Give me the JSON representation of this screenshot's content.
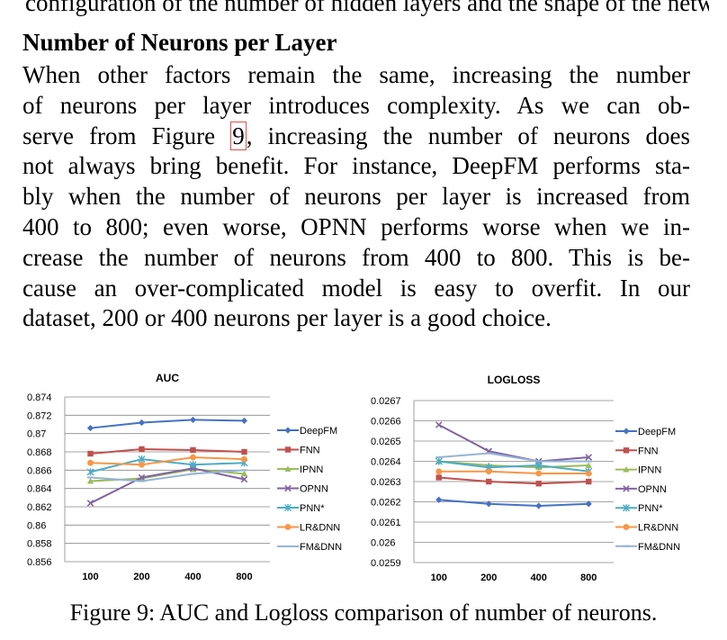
{
  "page": {
    "top_cut_line": "configuration of the number of hidden layers and the shape of the network.",
    "heading": "Number of Neurons per Layer",
    "paragraph_lines": [
      "When other factors remain the same, increasing the number",
      "of neurons per layer introduces complexity.  As we can ob-",
      "observe from Figure 9, increasing the number of neurons does",
      "not always bring benefit. For instance, DeepFM performs sta-",
      "bly when the number of neurons per layer is increased from",
      "400 to 800; even worse, OPNN performs worse when we in-",
      "crease the number of neurons from 400 to 800.  This is be-",
      "cause an over-complicated model is easy to overfit.  In our",
      "dataset, 200 or 400 neurons per layer is a good choice."
    ],
    "line3_before": "serve from Figure ",
    "line3_ref": "9",
    "line3_after": ", increasing the number of neurons does",
    "caption": "Figure 9: AUC and Logloss comparison of number of neurons."
  },
  "colors": {
    "DeepFM": "#4472c4",
    "FNN": "#c0504d",
    "IPNN": "#9bbb59",
    "OPNN": "#8064a2",
    "PNN*": "#4bacc6",
    "LR&DNN": "#f79646",
    "FM&DNN": "#95b3d7"
  },
  "chart_data": [
    {
      "type": "line",
      "title": "AUC",
      "categories": [
        "100",
        "200",
        "400",
        "800"
      ],
      "ylim": [
        0.856,
        0.874
      ],
      "yticks": [
        "0.874",
        "0.872",
        "0.87",
        "0.868",
        "0.866",
        "0.864",
        "0.862",
        "0.86",
        "0.858",
        "0.856"
      ],
      "legend_position": "right",
      "series": [
        {
          "name": "DeepFM",
          "values": [
            0.8706,
            0.8712,
            0.8715,
            0.8714
          ]
        },
        {
          "name": "FNN",
          "values": [
            0.8678,
            0.8683,
            0.8682,
            0.868
          ]
        },
        {
          "name": "IPNN",
          "values": [
            0.8648,
            0.8651,
            0.8661,
            0.8656
          ]
        },
        {
          "name": "OPNN",
          "values": [
            0.8624,
            0.8652,
            0.8662,
            0.865
          ]
        },
        {
          "name": "PNN*",
          "values": [
            0.8658,
            0.8672,
            0.8666,
            0.8668
          ]
        },
        {
          "name": "LR&DNN",
          "values": [
            0.8668,
            0.8666,
            0.8674,
            0.8672
          ]
        },
        {
          "name": "FM&DNN",
          "values": [
            0.8652,
            0.8648,
            0.8656,
            0.866
          ]
        }
      ]
    },
    {
      "type": "line",
      "title": "LOGLOSS",
      "categories": [
        "100",
        "200",
        "400",
        "800"
      ],
      "ylim": [
        0.0259,
        0.0267
      ],
      "yticks": [
        "0.0267",
        "0.0266",
        "0.0265",
        "0.0264",
        "0.0263",
        "0.0262",
        "0.0261",
        "0.026",
        "0.0259"
      ],
      "legend_position": "right",
      "series": [
        {
          "name": "DeepFM",
          "values": [
            0.02621,
            0.02619,
            0.02618,
            0.02619
          ]
        },
        {
          "name": "FNN",
          "values": [
            0.02632,
            0.0263,
            0.02629,
            0.0263
          ]
        },
        {
          "name": "IPNN",
          "values": [
            0.0264,
            0.02638,
            0.02637,
            0.02638
          ]
        },
        {
          "name": "OPNN",
          "values": [
            0.02658,
            0.02645,
            0.0264,
            0.02642
          ]
        },
        {
          "name": "PNN*",
          "values": [
            0.0264,
            0.02637,
            0.02638,
            0.02635
          ]
        },
        {
          "name": "LR&DNN",
          "values": [
            0.02635,
            0.02635,
            0.02634,
            0.02634
          ]
        },
        {
          "name": "FM&DNN",
          "values": [
            0.02642,
            0.02644,
            0.0264,
            0.0264
          ]
        }
      ]
    }
  ]
}
